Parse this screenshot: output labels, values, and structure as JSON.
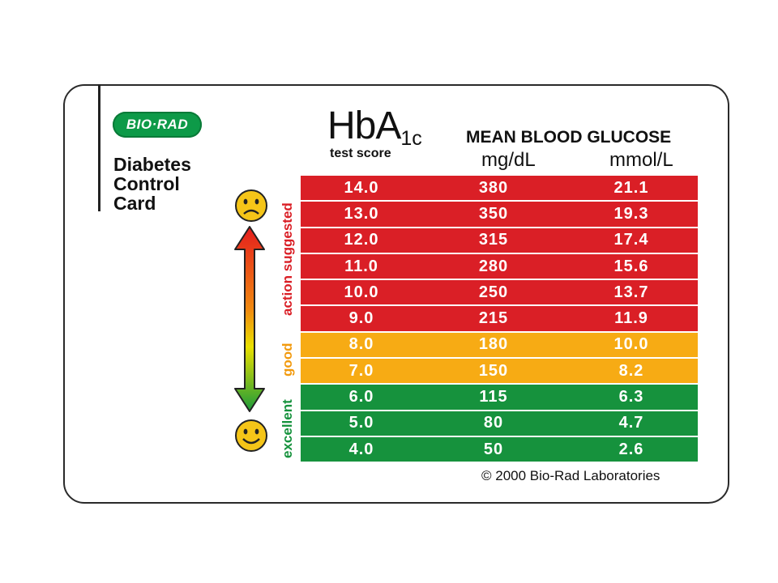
{
  "brand": {
    "logo_text": "BIO·RAD"
  },
  "card": {
    "title_lines": [
      "Diabetes",
      "Control",
      "Card"
    ]
  },
  "header": {
    "hba_main": "HbA",
    "hba_sub": "1c",
    "test_score": "test score",
    "mean_blood_glucose": "MEAN BLOOD GLUCOSE",
    "unit_mg": "mg/dL",
    "unit_mmol": "mmol/L"
  },
  "zones": {
    "action": "action suggested",
    "good": "good",
    "excellent": "excellent"
  },
  "rows": [
    {
      "hba1c": "14.0",
      "mgdl": "380",
      "mmol": "21.1",
      "zone": "red"
    },
    {
      "hba1c": "13.0",
      "mgdl": "350",
      "mmol": "19.3",
      "zone": "red"
    },
    {
      "hba1c": "12.0",
      "mgdl": "315",
      "mmol": "17.4",
      "zone": "red"
    },
    {
      "hba1c": "11.0",
      "mgdl": "280",
      "mmol": "15.6",
      "zone": "red"
    },
    {
      "hba1c": "10.0",
      "mgdl": "250",
      "mmol": "13.7",
      "zone": "red"
    },
    {
      "hba1c": "9.0",
      "mgdl": "215",
      "mmol": "11.9",
      "zone": "red"
    },
    {
      "hba1c": "8.0",
      "mgdl": "180",
      "mmol": "10.0",
      "zone": "yellow"
    },
    {
      "hba1c": "7.0",
      "mgdl": "150",
      "mmol": "8.2",
      "zone": "yellow"
    },
    {
      "hba1c": "6.0",
      "mgdl": "115",
      "mmol": "6.3",
      "zone": "green"
    },
    {
      "hba1c": "5.0",
      "mgdl": "80",
      "mmol": "4.7",
      "zone": "green"
    },
    {
      "hba1c": "4.0",
      "mgdl": "50",
      "mmol": "2.6",
      "zone": "green"
    }
  ],
  "icons": {
    "top": "sad-face-icon",
    "bottom": "happy-face-icon",
    "scale": "double-arrow-icon"
  },
  "colors": {
    "red": "#da1f26",
    "yellow": "#f7ab14",
    "green": "#16923d",
    "brand_green": "#0d9a48"
  },
  "footer": {
    "copyright": "© 2000 Bio-Rad Laboratories"
  }
}
